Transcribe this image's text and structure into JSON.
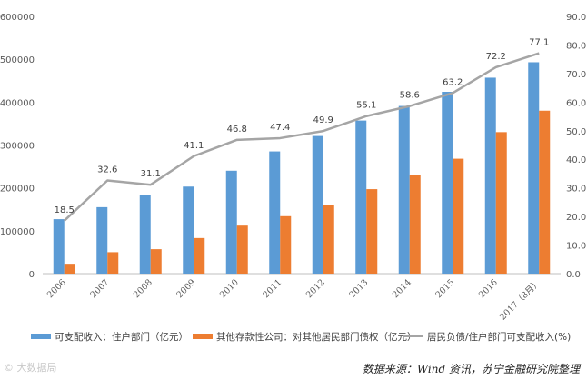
{
  "chart_data": {
    "type": "bar+line",
    "categories": [
      "2006",
      "2007",
      "2008",
      "2009",
      "2010",
      "2011",
      "2012",
      "2013",
      "2014",
      "2015",
      "2016",
      "2017（8月）"
    ],
    "series": [
      {
        "name": "可支配收入：住户部门（亿元）",
        "type": "bar",
        "axis": "left",
        "color": "#5b9bd5",
        "values": [
          127000,
          155000,
          184000,
          203000,
          240000,
          285000,
          321000,
          357000,
          391000,
          424000,
          457000,
          493000
        ]
      },
      {
        "name": "其他存款性公司：对其他居民部门债权（亿元）",
        "type": "bar",
        "axis": "left",
        "color": "#ed7d31",
        "values": [
          23000,
          50000,
          57000,
          83000,
          112000,
          134000,
          160000,
          197000,
          229000,
          268000,
          330000,
          380000
        ]
      },
      {
        "name": "居民负债/住户部门可支配收入(%)",
        "type": "line",
        "axis": "right",
        "color": "#a5a5a5",
        "values": [
          18.5,
          32.6,
          31.1,
          41.1,
          46.8,
          47.4,
          49.9,
          55.1,
          58.6,
          63.2,
          72.2,
          77.1
        ],
        "labels": [
          "18.5",
          "32.6",
          "31.1",
          "41.1",
          "46.8",
          "47.4",
          "49.9",
          "55.1",
          "58.6",
          "63.2",
          "72.2",
          "77.1"
        ]
      }
    ],
    "y_left": {
      "ylim": [
        0,
        600000
      ],
      "ticks": [
        "0",
        "100000",
        "200000",
        "300000",
        "400000",
        "500000",
        "600000"
      ]
    },
    "y_right": {
      "ylim": [
        0,
        90
      ],
      "ticks": [
        "0.0",
        "10.0",
        "20.0",
        "30.0",
        "40.0",
        "50.0",
        "60.0",
        "70.0",
        "80.0",
        "90.0"
      ]
    },
    "grid": false,
    "legend_position": "bottom"
  },
  "source_text": "数据来源：Wind 资讯，苏宁金融研究院整理",
  "watermark_text": "© 大数据局"
}
